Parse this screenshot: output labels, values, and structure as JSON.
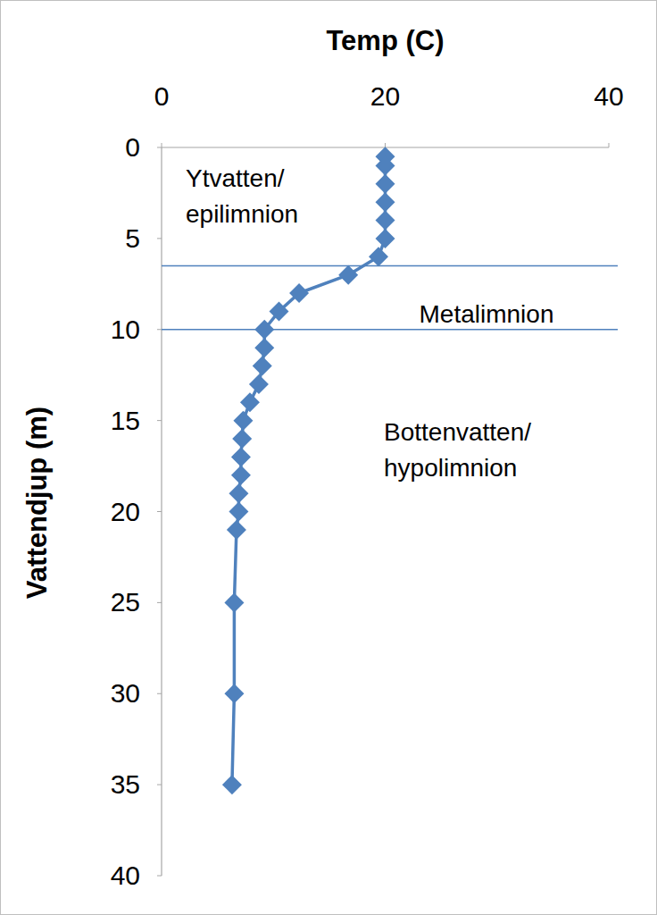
{
  "chart_data": {
    "type": "line",
    "x_label": "Temp (C)",
    "y_label": "Vattendjup (m)",
    "xlim": [
      0,
      40
    ],
    "xticks": [
      0,
      20,
      40
    ],
    "ylim": [
      0,
      40
    ],
    "yticks": [
      0,
      5,
      10,
      15,
      20,
      25,
      30,
      35,
      40
    ],
    "grid": false,
    "series": [
      {
        "color": "#4f81bd",
        "marker": "diamond",
        "x": [
          20,
          20,
          20,
          20,
          20,
          20,
          19.4,
          16.7,
          12.3,
          10.5,
          9.2,
          9.2,
          9.0,
          8.7,
          7.9,
          7.3,
          7.2,
          7.1,
          7.1,
          6.9,
          6.9,
          6.7,
          6.5,
          6.5,
          6.3
        ],
        "values": [
          0.5,
          1,
          2,
          3,
          4,
          5,
          6,
          7,
          8,
          9,
          10,
          11,
          12,
          13,
          14,
          15,
          16,
          17,
          18,
          19,
          20,
          21,
          25,
          30,
          35
        ]
      }
    ],
    "boundaries": [
      6.5,
      10
    ],
    "annotations": [
      {
        "lines": [
          "Ytvatten/",
          "epilimnion"
        ]
      },
      {
        "lines": [
          "Metalimnion"
        ]
      },
      {
        "lines": [
          "Bottenvatten/",
          "hypolimnion"
        ]
      }
    ]
  }
}
